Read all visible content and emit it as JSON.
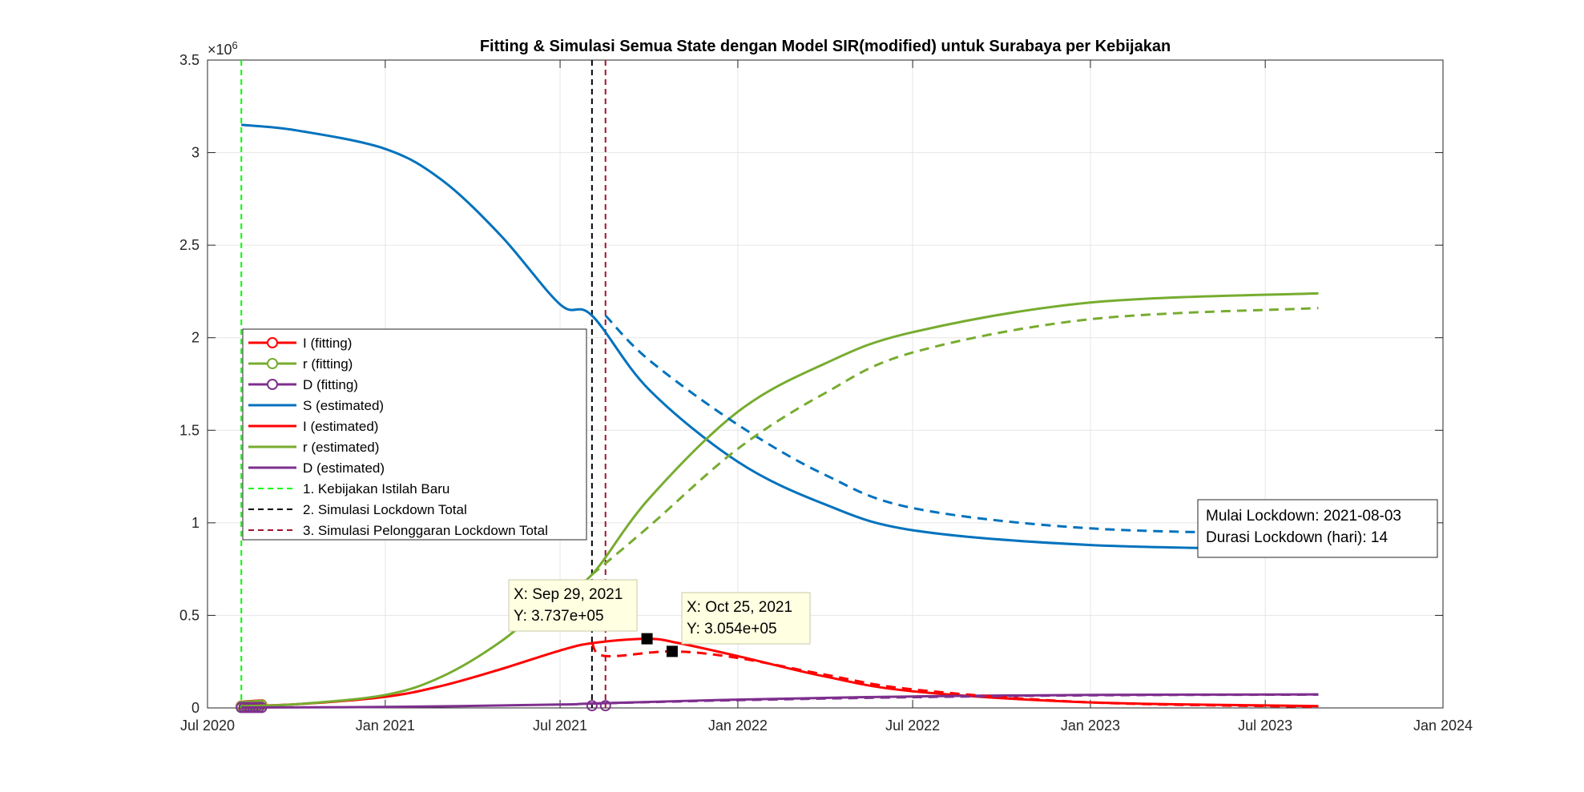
{
  "chart_data": {
    "type": "line",
    "title": "Fitting & Simulasi Semua State dengan Model SIR(modified) untuk Surabaya per Kebijakan",
    "xlabel": "",
    "ylabel": "",
    "y_exponent_label": "×10",
    "y_exponent_power": "6",
    "ylim": [
      0,
      3.5
    ],
    "xlim": [
      "2020-07-01",
      "2024-01-01"
    ],
    "grid": true,
    "legend_position": "middle-left",
    "x_ticks": [
      {
        "date": "2020-07-01",
        "label": "Jul 2020"
      },
      {
        "date": "2021-01-01",
        "label": "Jan 2021"
      },
      {
        "date": "2021-07-01",
        "label": "Jul 2021"
      },
      {
        "date": "2022-01-01",
        "label": "Jan 2022"
      },
      {
        "date": "2022-07-01",
        "label": "Jul 2022"
      },
      {
        "date": "2023-01-01",
        "label": "Jan 2023"
      },
      {
        "date": "2023-07-01",
        "label": "Jul 2023"
      },
      {
        "date": "2024-01-01",
        "label": "Jan 2024"
      }
    ],
    "y_ticks": [
      {
        "value": 0,
        "label": "0"
      },
      {
        "value": 0.5,
        "label": "0.5"
      },
      {
        "value": 1,
        "label": "1"
      },
      {
        "value": 1.5,
        "label": "1.5"
      },
      {
        "value": 2,
        "label": "2"
      },
      {
        "value": 2.5,
        "label": "2.5"
      },
      {
        "value": 3,
        "label": "3"
      },
      {
        "value": 3.5,
        "label": "3.5"
      }
    ],
    "series": [
      {
        "name": "I (fitting)",
        "color": "#ff0000",
        "style": "solid",
        "marker": "circle",
        "legend": true,
        "x": [
          "2020-08-05",
          "2020-08-08",
          "2020-08-11",
          "2020-08-14",
          "2020-08-17",
          "2020-08-20",
          "2020-08-23",
          "2020-08-26"
        ],
        "y": [
          0.01,
          0.011,
          0.012,
          0.013,
          0.014,
          0.015,
          0.016,
          0.017
        ]
      },
      {
        "name": "r (fitting)",
        "color": "#77ac30",
        "style": "solid",
        "marker": "circle",
        "legend": true,
        "x": [
          "2020-08-05",
          "2020-08-08",
          "2020-08-11",
          "2020-08-14",
          "2020-08-17",
          "2020-08-20",
          "2020-08-23",
          "2020-08-26"
        ],
        "y": [
          0.008,
          0.009,
          0.01,
          0.011,
          0.012,
          0.013,
          0.014,
          0.015
        ]
      },
      {
        "name": "D (fitting)",
        "color": "#7e2f8e",
        "style": "solid",
        "marker": "circle",
        "legend": true,
        "x": [
          "2020-08-05",
          "2020-08-08",
          "2020-08-11",
          "2020-08-14",
          "2020-08-17",
          "2020-08-20",
          "2020-08-23",
          "2020-08-26",
          "2021-08-03",
          "2021-08-17"
        ],
        "y": [
          0.002,
          0.002,
          0.002,
          0.002,
          0.002,
          0.002,
          0.002,
          0.002,
          0.012,
          0.012
        ]
      },
      {
        "name": "S (estimated)",
        "color": "#0072bd",
        "style": "solid",
        "legend": true,
        "x": [
          "2020-08-05",
          "2020-10-01",
          "2021-01-01",
          "2021-03-01",
          "2021-05-01",
          "2021-07-01",
          "2021-08-03",
          "2021-10-01",
          "2022-01-01",
          "2022-04-01",
          "2022-07-01",
          "2023-01-01",
          "2023-08-25"
        ],
        "y": [
          3.15,
          3.12,
          3.02,
          2.85,
          2.55,
          2.18,
          2.12,
          1.72,
          1.33,
          1.1,
          0.96,
          0.88,
          0.855
        ]
      },
      {
        "name": "I (estimated)",
        "color": "#ff0000",
        "style": "solid",
        "legend": true,
        "x": [
          "2020-08-05",
          "2020-10-01",
          "2021-01-01",
          "2021-03-01",
          "2021-05-01",
          "2021-07-01",
          "2021-08-03",
          "2021-09-29",
          "2021-11-01",
          "2022-01-01",
          "2022-04-01",
          "2022-07-01",
          "2023-01-01",
          "2023-08-25"
        ],
        "y": [
          0.01,
          0.02,
          0.06,
          0.12,
          0.21,
          0.31,
          0.35,
          0.3737,
          0.35,
          0.28,
          0.17,
          0.09,
          0.03,
          0.01
        ]
      },
      {
        "name": "r (estimated)",
        "color": "#77ac30",
        "style": "solid",
        "legend": true,
        "x": [
          "2020-08-05",
          "2020-10-01",
          "2021-01-01",
          "2021-03-01",
          "2021-05-01",
          "2021-07-01",
          "2021-08-03",
          "2021-10-01",
          "2022-01-01",
          "2022-04-01",
          "2022-07-01",
          "2023-01-01",
          "2023-08-25"
        ],
        "y": [
          0.01,
          0.02,
          0.07,
          0.17,
          0.36,
          0.62,
          0.72,
          1.13,
          1.6,
          1.86,
          2.03,
          2.19,
          2.24
        ]
      },
      {
        "name": "D (estimated)",
        "color": "#7e2f8e",
        "style": "solid",
        "legend": true,
        "x": [
          "2020-08-05",
          "2021-01-01",
          "2021-07-01",
          "2021-08-03",
          "2022-01-01",
          "2022-07-01",
          "2023-01-01",
          "2023-08-25"
        ],
        "y": [
          0.002,
          0.005,
          0.018,
          0.024,
          0.045,
          0.062,
          0.07,
          0.073
        ]
      },
      {
        "name": "",
        "color": "#0072bd",
        "style": "dashed",
        "legend": false,
        "x": [
          "2021-08-17",
          "2021-10-01",
          "2022-01-01",
          "2022-04-01",
          "2022-07-01",
          "2023-01-01",
          "2023-08-25"
        ],
        "y": [
          2.12,
          1.88,
          1.53,
          1.26,
          1.08,
          0.97,
          0.94
        ]
      },
      {
        "name": "",
        "color": "#77ac30",
        "style": "dashed",
        "legend": false,
        "x": [
          "2021-08-03",
          "2021-10-01",
          "2022-01-01",
          "2022-04-01",
          "2022-07-01",
          "2023-01-01",
          "2023-08-25"
        ],
        "y": [
          0.72,
          0.98,
          1.4,
          1.7,
          1.92,
          2.1,
          2.16
        ]
      },
      {
        "name": "",
        "color": "#ff0000",
        "style": "dashed",
        "legend": false,
        "x": [
          "2021-08-03",
          "2021-08-17",
          "2021-10-25",
          "2022-01-01",
          "2022-04-01",
          "2022-07-01",
          "2023-01-01",
          "2023-08-25"
        ],
        "y": [
          0.35,
          0.28,
          0.3054,
          0.27,
          0.18,
          0.1,
          0.03,
          0.006
        ]
      },
      {
        "name": "",
        "color": "#7e2f8e",
        "style": "dashed",
        "legend": false,
        "x": [
          "2021-08-03",
          "2022-01-01",
          "2022-07-01",
          "2023-01-01",
          "2023-08-25"
        ],
        "y": [
          0.024,
          0.042,
          0.058,
          0.068,
          0.072
        ]
      }
    ],
    "vlines": [
      {
        "name": "1. Kebijakan Istilah Baru",
        "date": "2020-08-05",
        "color": "#00ff00"
      },
      {
        "name": "2. Simulasi Lockdown Total",
        "date": "2021-08-03",
        "color": "#000000"
      },
      {
        "name": "3. Simulasi Pelonggaran Lockdown Total",
        "date": "2021-08-17",
        "color": "#a2142f"
      }
    ],
    "datatips": [
      {
        "x_date": "2021-09-29",
        "y": 0.3737,
        "x_label": "X: Sep 29, 2021",
        "y_label": "Y: 3.737e+05"
      },
      {
        "x_date": "2021-10-25",
        "y": 0.3054,
        "x_label": "X: Oct 25, 2021",
        "y_label": "Y: 3.054e+05"
      }
    ],
    "info_box": {
      "lines": [
        "Mulai Lockdown: 2021-08-03",
        "Durasi Lockdown (hari): 14"
      ]
    }
  }
}
